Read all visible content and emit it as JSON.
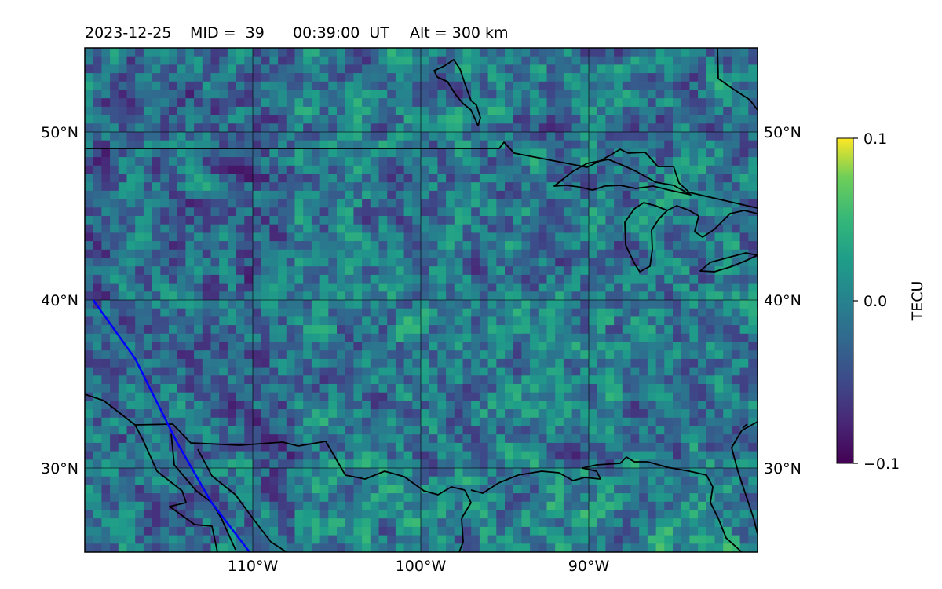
{
  "title": {
    "date": "2023-12-25",
    "mid": "MID =  39",
    "time": "00:39:00  UT",
    "alt": "Alt = 300 km"
  },
  "map": {
    "lat_ticks": [
      {
        "value": 30,
        "label": "30°N"
      },
      {
        "value": 40,
        "label": "40°N"
      },
      {
        "value": 50,
        "label": "50°N"
      }
    ],
    "lon_ticks": [
      {
        "value": -110,
        "label": "110°W"
      },
      {
        "value": -100,
        "label": "100°W"
      },
      {
        "value": -90,
        "label": "90°W"
      }
    ],
    "extent": {
      "lon": [
        -120,
        -80
      ],
      "lat": [
        25,
        55
      ]
    },
    "colormap": "viridis",
    "coastline_color": "#000000",
    "track_color": "#0000ff"
  },
  "colorbar": {
    "label": "TECU",
    "min": -0.1,
    "max": 0.1,
    "ticks": [
      {
        "value": 0.1,
        "label": "0.1"
      },
      {
        "value": 0.0,
        "label": "0.0"
      },
      {
        "value": -0.1,
        "label": "−0.1"
      }
    ]
  },
  "track": {
    "points": [
      [
        -119.5,
        40.0
      ],
      [
        -117.0,
        36.5
      ],
      [
        -114.5,
        31.5
      ],
      [
        -112.5,
        28.0
      ],
      [
        -110.2,
        25.0
      ]
    ]
  }
}
